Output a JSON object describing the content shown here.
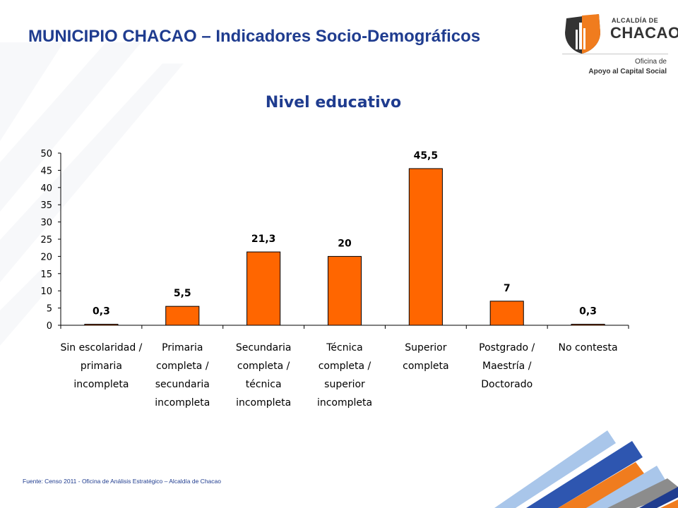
{
  "header": {
    "title": "MUNICIPIO CHACAO – Indicadores Socio-Demográficos"
  },
  "logo": {
    "line1": "ALCALDÍA DE",
    "line2": "CHACAO",
    "line3": "Oficina de",
    "line4": "Apoyo al Capital Social",
    "colors": {
      "orange": "#f07c1e",
      "dark": "#333333"
    }
  },
  "footer": {
    "source": "Fuente: Censo 2011 - Oficina de Análisis Estratégico – Alcaldía de Chacao"
  },
  "chart_data": {
    "type": "bar",
    "title": "Nivel educativo",
    "categories": [
      [
        "Sin escolaridad /",
        "primaria",
        "incompleta"
      ],
      [
        "Primaria",
        "completa /",
        "secundaria",
        "incompleta"
      ],
      [
        "Secundaria",
        "completa /",
        "técnica",
        "incompleta"
      ],
      [
        "Técnica",
        "completa /",
        "superior",
        "incompleta"
      ],
      [
        "Superior",
        "completa"
      ],
      [
        "Postgrado /",
        "Maestría /",
        "Doctorado"
      ],
      [
        "No contesta"
      ]
    ],
    "values": [
      0.3,
      5.5,
      21.3,
      20,
      45.5,
      7,
      0.3
    ],
    "value_labels": [
      "0,3",
      "5,5",
      "21,3",
      "20",
      "45,5",
      "7",
      "0,3"
    ],
    "ylim": [
      0,
      50
    ],
    "yticks": [
      0,
      5,
      10,
      15,
      20,
      25,
      30,
      35,
      40,
      45,
      50
    ],
    "xlabel": "",
    "ylabel": "",
    "grid": false,
    "bar_color": "#ff6600",
    "title_color": "#1f3c8f"
  }
}
